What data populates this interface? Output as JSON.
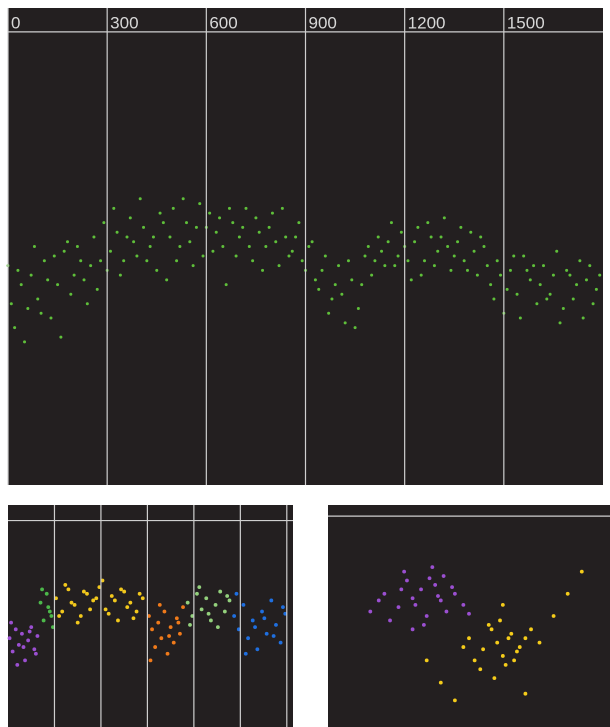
{
  "chart_data": [
    {
      "type": "scatter",
      "background": "#231f20",
      "grid": true,
      "x_tick_labels": true,
      "y_tick_labels": false,
      "xlim": [
        0,
        1800
      ],
      "ylim": [
        0,
        100
      ],
      "xticks": [
        0,
        300,
        600,
        900,
        1200,
        1500
      ],
      "yticks": [
        95
      ],
      "series": [
        {
          "color": "#5fbf3a",
          "x": [
            0,
            20,
            40,
            60,
            80,
            100,
            120,
            140,
            160,
            180,
            200,
            220,
            240,
            260,
            280,
            300,
            320,
            340,
            360,
            380,
            400,
            420,
            440,
            460,
            480,
            500,
            520,
            540,
            560,
            580,
            600,
            620,
            640,
            660,
            680,
            700,
            720,
            740,
            760,
            780,
            800,
            820,
            840,
            860,
            880,
            900,
            920,
            940,
            960,
            980,
            1000,
            1020,
            1040,
            1060,
            1080,
            1100,
            1120,
            1140,
            1160,
            1180,
            1200,
            1220,
            1240,
            1260,
            1280,
            1300,
            1320,
            1340,
            1360,
            1380,
            1400,
            1420,
            1440,
            1460,
            1480,
            1500,
            1520,
            1540,
            1560,
            1580,
            1600,
            1620,
            1640,
            1660,
            1680,
            1700,
            1720,
            1740,
            1760,
            1780
          ],
          "y": [
            46,
            33,
            42,
            37,
            50,
            36,
            43,
            48,
            31,
            51,
            44,
            47,
            38,
            52,
            47,
            45,
            58,
            44,
            52,
            51,
            60,
            47,
            52,
            57,
            43,
            58,
            50,
            55,
            46,
            59,
            54,
            49,
            56,
            42,
            55,
            52,
            58,
            47,
            53,
            50,
            57,
            46,
            52,
            49,
            55,
            45,
            51,
            41,
            48,
            39,
            46,
            34,
            43,
            37,
            48,
            44,
            52,
            46,
            55,
            48,
            50,
            43,
            54,
            47,
            52,
            49,
            56,
            45,
            51,
            47,
            53,
            44,
            50,
            42,
            47,
            36,
            45,
            40,
            48,
            43,
            38,
            46,
            40,
            49,
            37,
            44,
            42,
            35,
            46,
            41
          ]
        },
        {
          "color": "#5fbf3a",
          "x": [
            10,
            30,
            50,
            70,
            90,
            110,
            130,
            150,
            170,
            190,
            210,
            230,
            250,
            270,
            290,
            310,
            330,
            350,
            370,
            390,
            410,
            430,
            450,
            470,
            490,
            510,
            530,
            550,
            570,
            590,
            610,
            630,
            650,
            670,
            690,
            710,
            730,
            750,
            770,
            790,
            810,
            830,
            850,
            870,
            890,
            910,
            930,
            950,
            970,
            990,
            1010,
            1030,
            1050,
            1070,
            1090,
            1110,
            1130,
            1150,
            1170,
            1190,
            1210,
            1230,
            1250,
            1270,
            1290,
            1310,
            1330,
            1350,
            1370,
            1390,
            1410,
            1430,
            1450,
            1470,
            1490,
            1510,
            1530,
            1550,
            1570,
            1590,
            1610,
            1630,
            1650,
            1670,
            1690,
            1710,
            1730,
            1750,
            1770,
            1790
          ],
          "y": [
            38,
            45,
            30,
            44,
            39,
            47,
            35,
            42,
            49,
            40,
            50,
            43,
            46,
            41,
            55,
            49,
            53,
            47,
            56,
            48,
            54,
            50,
            45,
            55,
            52,
            47,
            60,
            51,
            54,
            48,
            57,
            53,
            50,
            58,
            48,
            54,
            50,
            56,
            45,
            54,
            51,
            58,
            48,
            52,
            47,
            50,
            43,
            45,
            36,
            42,
            40,
            47,
            33,
            42,
            50,
            47,
            49,
            51,
            46,
            53,
            47,
            51,
            44,
            55,
            46,
            52,
            50,
            48,
            54,
            45,
            49,
            52,
            46,
            39,
            44,
            41,
            48,
            35,
            45,
            46,
            42,
            39,
            44,
            34,
            45,
            39,
            47,
            43,
            38,
            44
          ]
        }
      ]
    },
    {
      "type": "scatter",
      "background": "#231f20",
      "grid": true,
      "x_tick_labels": false,
      "y_tick_labels": false,
      "xlim": [
        0,
        1840
      ],
      "ylim": [
        0,
        100
      ],
      "xticks": [
        300,
        600,
        900,
        1200,
        1500,
        1800
      ],
      "yticks": [
        93
      ],
      "series": [
        {
          "color": "#9b4fd1",
          "x": [
            10,
            30,
            50,
            70,
            90,
            110,
            130,
            150,
            170,
            190,
            20,
            60,
            100,
            140,
            180
          ],
          "y": [
            40,
            34,
            44,
            37,
            42,
            30,
            39,
            45,
            35,
            41,
            47,
            28,
            36,
            43,
            33
          ]
        },
        {
          "color": "#4cb84a",
          "x": [
            210,
            230,
            250,
            270,
            290,
            220,
            260,
            280
          ],
          "y": [
            56,
            48,
            60,
            52,
            45,
            62,
            54,
            50
          ]
        },
        {
          "color": "#f2c81c",
          "x": [
            310,
            350,
            390,
            430,
            470,
            510,
            550,
            590,
            630,
            670,
            710,
            750,
            790,
            830,
            870,
            330,
            370,
            410,
            450,
            490,
            530,
            570,
            610,
            650,
            690,
            730,
            770,
            810,
            850
          ],
          "y": [
            58,
            52,
            62,
            55,
            50,
            60,
            57,
            63,
            53,
            59,
            48,
            61,
            56,
            52,
            58,
            50,
            64,
            56,
            47,
            61,
            53,
            58,
            66,
            51,
            57,
            62,
            54,
            49,
            60
          ]
        },
        {
          "color": "#f07a1a",
          "x": [
            910,
            930,
            950,
            970,
            990,
            1010,
            1030,
            1050,
            1070,
            1090,
            1110,
            1130,
            920,
            980,
            1040,
            1100
          ],
          "y": [
            50,
            44,
            36,
            47,
            40,
            52,
            33,
            45,
            38,
            49,
            42,
            54,
            30,
            55,
            41,
            47
          ]
        },
        {
          "color": "#93d07c",
          "x": [
            1160,
            1190,
            1220,
            1250,
            1280,
            1310,
            1340,
            1370,
            1400,
            1430,
            1175,
            1235,
            1295,
            1355,
            1415
          ],
          "y": [
            56,
            50,
            60,
            53,
            58,
            48,
            55,
            61,
            52,
            57,
            46,
            63,
            51,
            45,
            59
          ]
        },
        {
          "color": "#1f6fe0",
          "x": [
            1460,
            1490,
            1520,
            1550,
            1580,
            1610,
            1640,
            1670,
            1700,
            1730,
            1760,
            1790,
            1475,
            1535,
            1595,
            1655,
            1715,
            1775
          ],
          "y": [
            50,
            44,
            55,
            40,
            48,
            35,
            52,
            42,
            57,
            46,
            38,
            51,
            60,
            33,
            45,
            49,
            41,
            54
          ]
        }
      ]
    },
    {
      "type": "scatter",
      "background": "#231f20",
      "grid": true,
      "x_tick_labels": false,
      "y_tick_labels": false,
      "xlim": [
        0,
        100
      ],
      "ylim": [
        0,
        100
      ],
      "xticks": [],
      "yticks": [
        95
      ],
      "series": [
        {
          "color": "#9b4fd1",
          "x": [
            20,
            25,
            28,
            30,
            33,
            35,
            38,
            40,
            42,
            45,
            22,
            27,
            31,
            36,
            39,
            44,
            48,
            18,
            34,
            50,
            26,
            41,
            15,
            37,
            30
          ],
          "y": [
            60,
            54,
            66,
            58,
            62,
            50,
            64,
            57,
            52,
            60,
            48,
            70,
            55,
            67,
            59,
            63,
            55,
            57,
            46,
            51,
            62,
            68,
            52,
            72,
            44
          ]
        },
        {
          "color": "#f5cc1a",
          "x": [
            50,
            55,
            58,
            60,
            62,
            65,
            68,
            70,
            52,
            57,
            63,
            67,
            72,
            75,
            48,
            54,
            61,
            66,
            59,
            64,
            80,
            40,
            85,
            45,
            90,
            35,
            70,
            62
          ],
          "y": [
            40,
            35,
            44,
            38,
            32,
            42,
            36,
            40,
            30,
            46,
            28,
            34,
            44,
            38,
            36,
            26,
            48,
            30,
            22,
            40,
            50,
            20,
            60,
            12,
            70,
            30,
            15,
            55
          ]
        }
      ]
    }
  ]
}
